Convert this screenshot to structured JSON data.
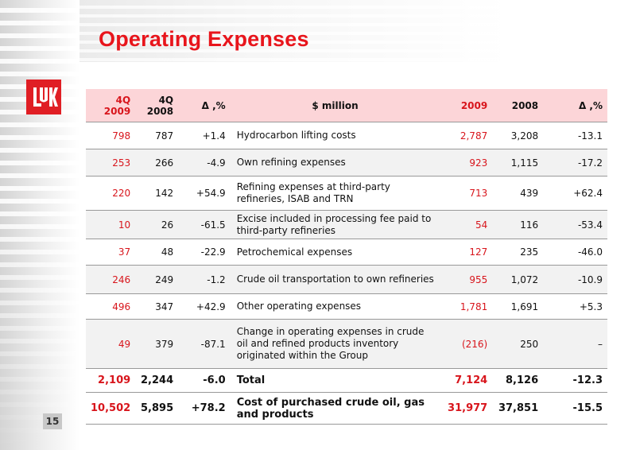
{
  "title": "Operating Expenses",
  "page_number": "15",
  "logo_text": "LUK",
  "table": {
    "headers": {
      "q4_2009": [
        "4Q",
        "2009"
      ],
      "q4_2008": [
        "4Q",
        "2008"
      ],
      "delta_q": "Δ ,%",
      "item": "$ million",
      "y2009": "2009",
      "y2008": "2008",
      "delta_y": "Δ ,%"
    },
    "rows": [
      {
        "q2009": "798",
        "q2008": "787",
        "dq": "+1.4",
        "item": "Hydrocarbon lifting costs",
        "y2009": "2,787",
        "y2008": "3,208",
        "dy": "-13.1",
        "h": 34
      },
      {
        "q2009": "253",
        "q2008": "266",
        "dq": "-4.9",
        "item": "Own refining expenses",
        "y2009": "923",
        "y2008": "1,115",
        "dy": "-17.2",
        "h": 34
      },
      {
        "q2009": "220",
        "q2008": "142",
        "dq": "+54.9",
        "item": "Refining expenses at third-party refineries, ISAB and TRN",
        "y2009": "713",
        "y2008": "439",
        "dy": "+62.4",
        "h": 43
      },
      {
        "q2009": "10",
        "q2008": "26",
        "dq": "-61.5",
        "item": "Excise included in processing fee paid to third-party refineries",
        "y2009": "54",
        "y2008": "116",
        "dy": "-53.4",
        "h": 36
      },
      {
        "q2009": "37",
        "q2008": "48",
        "dq": "-22.9",
        "item": "Petrochemical expenses",
        "y2009": "127",
        "y2008": "235",
        "dy": "-46.0",
        "h": 33
      },
      {
        "q2009": "246",
        "q2008": "249",
        "dq": "-1.2",
        "item": "Crude oil transportation to own refineries",
        "y2009": "955",
        "y2008": "1,072",
        "dy": "-10.9",
        "h": 36
      },
      {
        "q2009": "496",
        "q2008": "347",
        "dq": "+42.9",
        "item": "Other operating expenses",
        "y2009": "1,781",
        "y2008": "1,691",
        "dy": "+5.3",
        "h": 32
      },
      {
        "q2009": "49",
        "q2008": "379",
        "dq": "-87.1",
        "item": "Change in operating expenses in crude oil and refined products inventory originated within the Group",
        "y2009": "(216)",
        "y2008": "250",
        "dy": "–",
        "h": 62
      }
    ],
    "totals": [
      {
        "q2009": "2,109",
        "q2008": "2,244",
        "dq": "-6.0",
        "item": "Total",
        "y2009": "7,124",
        "y2008": "8,126",
        "dy": "-12.3",
        "h": 30
      },
      {
        "q2009": "10,502",
        "q2008": "5,895",
        "dq": "+78.2",
        "item": "Cost of purchased crude oil, gas and products",
        "y2009": "31,977",
        "y2008": "37,851",
        "dy": "-15.5",
        "h": 40
      }
    ]
  },
  "colors": {
    "accent": "#e8151c",
    "header_bg": "#fcd5d8",
    "alt_row": "#f2f2f2"
  }
}
